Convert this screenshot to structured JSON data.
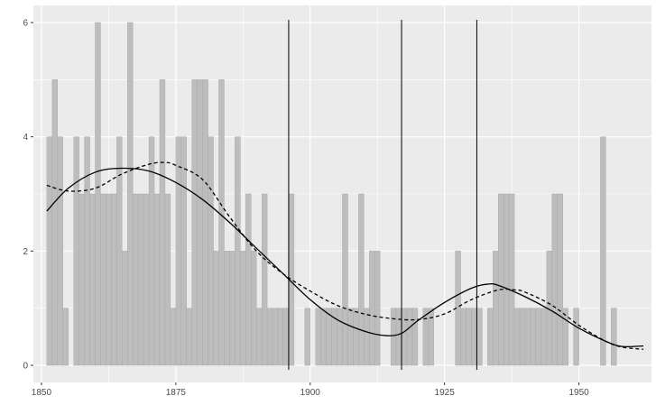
{
  "chart_data": {
    "type": "bar",
    "title": "",
    "xlabel": "",
    "ylabel": "",
    "xlim": [
      1848.5,
      1963.5
    ],
    "ylim": [
      -0.3,
      6.3
    ],
    "x_ticks": [
      1850,
      1875,
      1900,
      1925,
      1950
    ],
    "y_ticks": [
      0,
      2,
      4,
      6
    ],
    "x_tick_labels": [
      "1850",
      "1875",
      "1900",
      "1925",
      "1950"
    ],
    "y_tick_labels": [
      "0",
      "2",
      "4",
      "6"
    ],
    "grid": true,
    "colors": {
      "panel": "#ebebeb",
      "grid": "#ffffff",
      "bar_fill": "#bdbdbd",
      "bar_stroke": "#a6a6a6",
      "line": "#000000"
    },
    "bars": {
      "x_start": 1851,
      "width": 1,
      "values": [
        4,
        5,
        4,
        1,
        0,
        4,
        3,
        4,
        3,
        6,
        3,
        3,
        3,
        4,
        2,
        6,
        3,
        3,
        3,
        4,
        3,
        5,
        3,
        1,
        4,
        4,
        1,
        5,
        5,
        5,
        4,
        2,
        5,
        2,
        2,
        4,
        2,
        3,
        2,
        1,
        3,
        1,
        1,
        1,
        1,
        3,
        0,
        0,
        1,
        0,
        1,
        1,
        1,
        1,
        1,
        3,
        1,
        1,
        3,
        1,
        2,
        2,
        0,
        0,
        1,
        1,
        1,
        1,
        1,
        0,
        1,
        1,
        0,
        0,
        0,
        0,
        2,
        1,
        1,
        1,
        1,
        0,
        1,
        2,
        3,
        3,
        3,
        1,
        1,
        1,
        1,
        1,
        1,
        2,
        3,
        3,
        1,
        0,
        1,
        0,
        0,
        0,
        0,
        4,
        0,
        1,
        0,
        0,
        0,
        0,
        0,
        0,
        0,
        0,
        0,
        0,
        0,
        1,
        1,
        0,
        0,
        1,
        1,
        1,
        0,
        0,
        0,
        0,
        0,
        0,
        0,
        0,
        0,
        0,
        0,
        0,
        0,
        0,
        0,
        0,
        0,
        0,
        1,
        0,
        1
      ]
    },
    "series": [
      {
        "style": "solid",
        "x": [
          1851,
          1855,
          1860,
          1865,
          1870,
          1875,
          1880,
          1885,
          1890,
          1895,
          1900,
          1905,
          1910,
          1914,
          1917,
          1920,
          1925,
          1930,
          1933,
          1935,
          1940,
          1945,
          1950,
          1955,
          1958,
          1962
        ],
        "y": [
          2.7,
          3.1,
          3.38,
          3.45,
          3.4,
          3.2,
          2.9,
          2.5,
          2.05,
          1.6,
          1.15,
          0.8,
          0.6,
          0.52,
          0.56,
          0.78,
          1.1,
          1.35,
          1.42,
          1.4,
          1.2,
          0.95,
          0.65,
          0.42,
          0.33,
          0.34
        ]
      },
      {
        "style": "dashed",
        "x": [
          1851,
          1855,
          1860,
          1865,
          1870,
          1873,
          1875,
          1880,
          1885,
          1890,
          1895,
          1900,
          1905,
          1910,
          1915,
          1920,
          1925,
          1930,
          1935,
          1938,
          1940,
          1945,
          1950,
          1955,
          1958,
          1962
        ],
        "y": [
          3.15,
          3.05,
          3.1,
          3.35,
          3.52,
          3.55,
          3.5,
          3.25,
          2.6,
          2.0,
          1.6,
          1.3,
          1.05,
          0.9,
          0.82,
          0.8,
          0.9,
          1.15,
          1.32,
          1.32,
          1.28,
          1.05,
          0.7,
          0.42,
          0.32,
          0.28
        ]
      }
    ],
    "vlines": [
      1896,
      1917,
      1931
    ]
  }
}
